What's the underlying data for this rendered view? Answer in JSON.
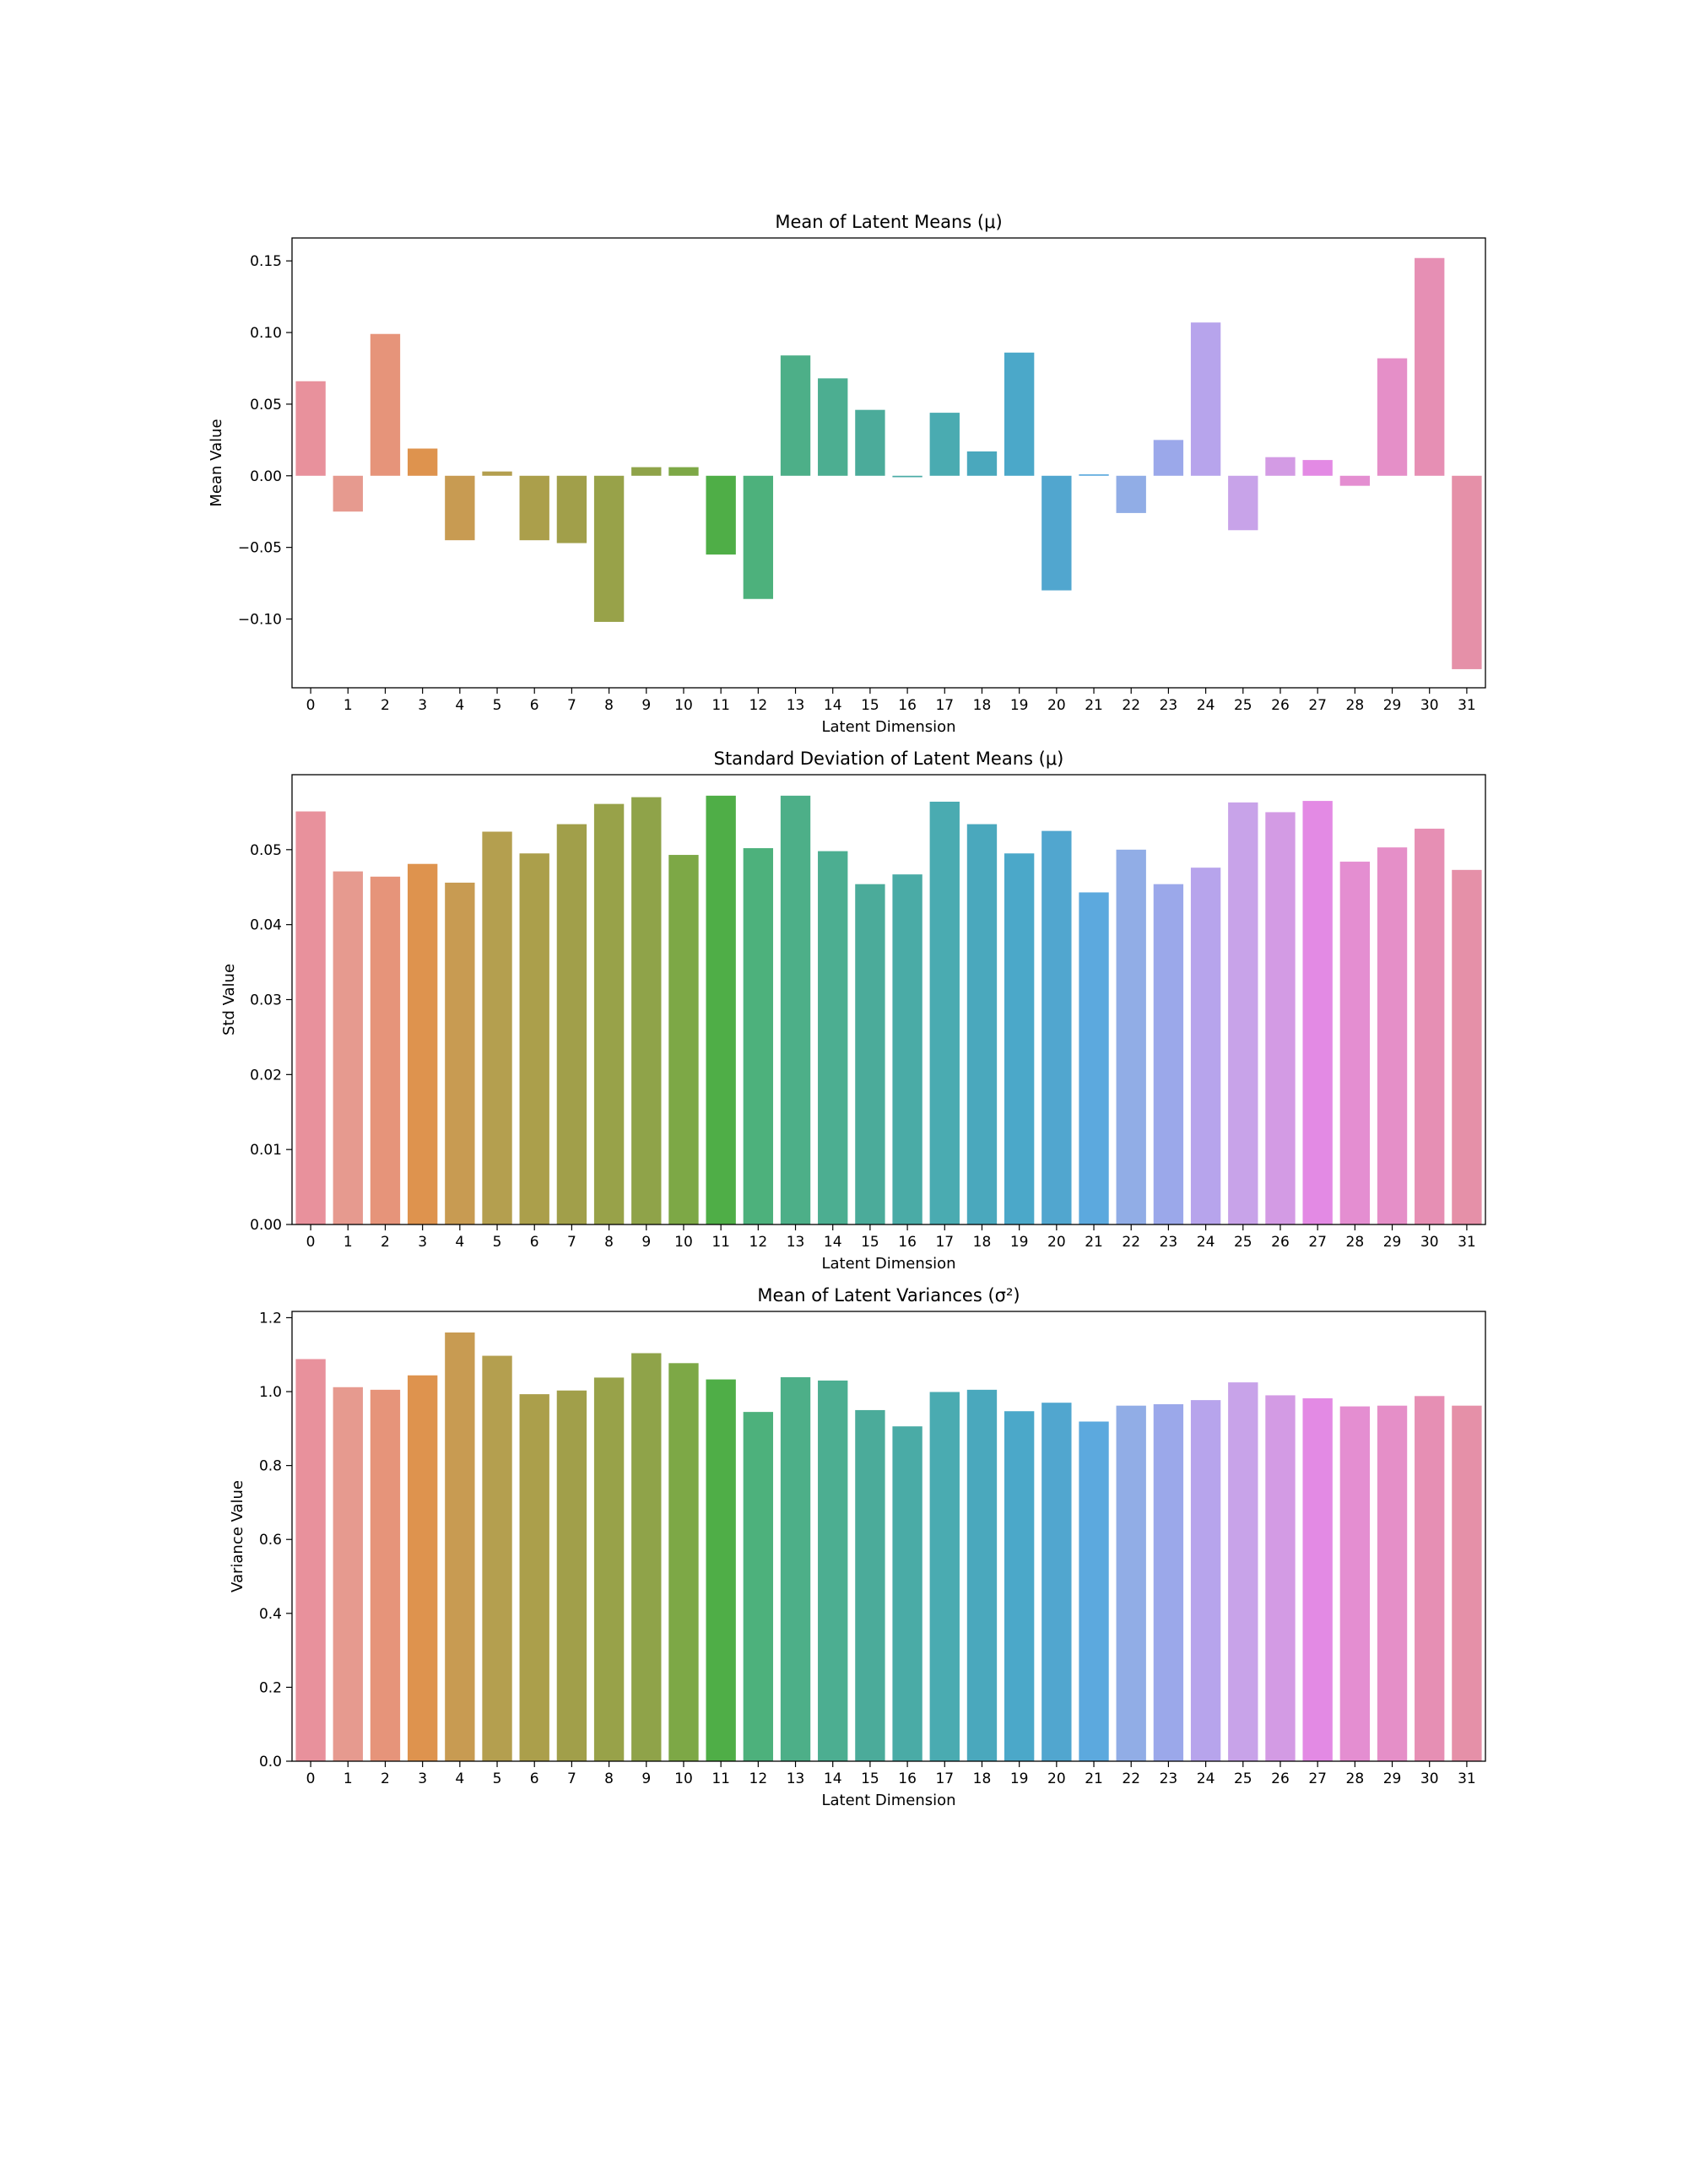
{
  "chart_data": [
    {
      "type": "bar",
      "title": "Mean of Latent Means (μ)",
      "xlabel": "Latent Dimension",
      "ylabel": "Mean Value",
      "ylim": [
        -0.148,
        0.166
      ],
      "yticks": [
        -0.1,
        -0.05,
        0.0,
        0.05,
        0.1,
        0.15
      ],
      "ytick_labels": [
        "−0.10",
        "−0.05",
        "0.00",
        "0.05",
        "0.10",
        "0.15"
      ],
      "categories": [
        "0",
        "1",
        "2",
        "3",
        "4",
        "5",
        "6",
        "7",
        "8",
        "9",
        "10",
        "11",
        "12",
        "13",
        "14",
        "15",
        "16",
        "17",
        "18",
        "19",
        "20",
        "21",
        "22",
        "23",
        "24",
        "25",
        "26",
        "27",
        "28",
        "29",
        "30",
        "31"
      ],
      "values": [
        0.066,
        -0.025,
        0.099,
        0.019,
        -0.045,
        0.003,
        -0.045,
        -0.047,
        -0.102,
        0.006,
        0.006,
        -0.055,
        -0.086,
        0.084,
        0.068,
        0.046,
        -0.001,
        0.044,
        0.017,
        0.086,
        -0.08,
        0.001,
        -0.026,
        0.025,
        0.107,
        -0.038,
        0.013,
        0.011,
        -0.007,
        0.082,
        0.152,
        -0.135
      ]
    },
    {
      "type": "bar",
      "title": "Standard Deviation of Latent Means (μ)",
      "xlabel": "Latent Dimension",
      "ylabel": "Std Value",
      "ylim": [
        0,
        0.06
      ],
      "yticks": [
        0,
        0.01,
        0.02,
        0.03,
        0.04,
        0.05
      ],
      "ytick_labels": [
        "0.00",
        "0.01",
        "0.02",
        "0.03",
        "0.04",
        "0.05"
      ],
      "categories": [
        "0",
        "1",
        "2",
        "3",
        "4",
        "5",
        "6",
        "7",
        "8",
        "9",
        "10",
        "11",
        "12",
        "13",
        "14",
        "15",
        "16",
        "17",
        "18",
        "19",
        "20",
        "21",
        "22",
        "23",
        "24",
        "25",
        "26",
        "27",
        "28",
        "29",
        "30",
        "31"
      ],
      "values": [
        0.0551,
        0.0471,
        0.0464,
        0.0481,
        0.0456,
        0.0524,
        0.0495,
        0.0534,
        0.0561,
        0.057,
        0.0493,
        0.0572,
        0.0502,
        0.0572,
        0.0498,
        0.0454,
        0.0467,
        0.0564,
        0.0534,
        0.0495,
        0.0525,
        0.0443,
        0.05,
        0.0454,
        0.0476,
        0.0563,
        0.055,
        0.0565,
        0.0484,
        0.0503,
        0.0528,
        0.0473
      ]
    },
    {
      "type": "bar",
      "title": "Mean of Latent Variances (σ²)",
      "xlabel": "Latent Dimension",
      "ylabel": "Variance Value",
      "ylim": [
        0,
        1.217
      ],
      "yticks": [
        0,
        0.2,
        0.4,
        0.6,
        0.8,
        1.0,
        1.2
      ],
      "ytick_labels": [
        "0.0",
        "0.2",
        "0.4",
        "0.6",
        "0.8",
        "1.0",
        "1.2"
      ],
      "categories": [
        "0",
        "1",
        "2",
        "3",
        "4",
        "5",
        "6",
        "7",
        "8",
        "9",
        "10",
        "11",
        "12",
        "13",
        "14",
        "15",
        "16",
        "17",
        "18",
        "19",
        "20",
        "21",
        "22",
        "23",
        "24",
        "25",
        "26",
        "27",
        "28",
        "29",
        "30",
        "31"
      ],
      "values": [
        1.088,
        1.012,
        1.005,
        1.044,
        1.16,
        1.097,
        0.993,
        1.003,
        1.038,
        1.104,
        1.077,
        1.033,
        0.945,
        1.039,
        1.03,
        0.95,
        0.906,
        0.999,
        1.005,
        0.947,
        0.97,
        0.919,
        0.962,
        0.966,
        0.977,
        1.025,
        0.99,
        0.982,
        0.96,
        0.962,
        0.988,
        0.962
      ]
    }
  ],
  "palette": [
    "#e8919c",
    "#e69a8f",
    "#e6947a",
    "#de934e",
    "#c89b52",
    "#b49f4f",
    "#ab9f4b",
    "#a19f4a",
    "#98a249",
    "#8fa349",
    "#7da846",
    "#4fae47",
    "#4db17c",
    "#4daf88",
    "#4cae91",
    "#4bab9a",
    "#4aaba6",
    "#4aabb1",
    "#4aa8bd",
    "#4ba8c9",
    "#51a6cf",
    "#5ca9de",
    "#91ade6",
    "#9ba8ea",
    "#b7a4ec",
    "#c8a3e9",
    "#d39be4",
    "#e38ae4",
    "#e48ed1",
    "#e58fc8",
    "#e68fb4",
    "#e590a8"
  ]
}
